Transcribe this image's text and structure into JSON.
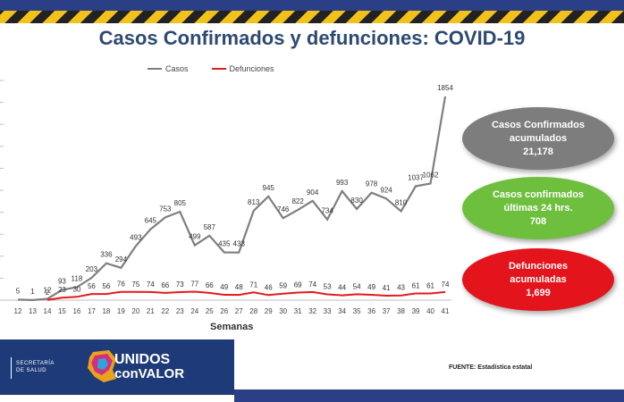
{
  "title": "Casos Confirmados y defunciones: COVID-19",
  "legend": {
    "series1": "Casos",
    "series2": "Defunciones",
    "color1": "#7f7f7f",
    "color2": "#e21b1b"
  },
  "xlabel": "Semanas",
  "cards": [
    {
      "line1": "Casos Confirmados",
      "line2": "acumulados",
      "line3": "21,178",
      "color": "#7d7d7d"
    },
    {
      "line1": "Casos confirmados",
      "line2": "últimas 24 hrs.",
      "line3": "708",
      "color": "#6fbf3e"
    },
    {
      "line1": "Defunciones",
      "line2": "acumuladas",
      "line3": "1,699",
      "color": "#e3141b"
    }
  ],
  "footer": {
    "secretaria": "SECRETARÍA",
    "de_salud": "DE SALUD",
    "logo_line1": "UNIDOS",
    "logo_line2": "conVALOR",
    "source": "FUENTE: Estadística estatal"
  },
  "chart_data": {
    "type": "line",
    "x": [
      12,
      13,
      14,
      15,
      16,
      17,
      18,
      19,
      20,
      21,
      22,
      23,
      24,
      25,
      26,
      27,
      28,
      29,
      30,
      31,
      32,
      33,
      34,
      35,
      36,
      37,
      38,
      39,
      40,
      41
    ],
    "series": [
      {
        "name": "Casos",
        "values": [
          5,
          1,
          12,
          93,
          118,
          203,
          336,
          294,
          493,
          645,
          753,
          805,
          499,
          587,
          435,
          433,
          813,
          945,
          746,
          822,
          904,
          734,
          993,
          830,
          978,
          924,
          810,
          1037,
          1062,
          1854
        ]
      },
      {
        "name": "Defunciones",
        "values": [
          null,
          null,
          2,
          23,
          30,
          56,
          56,
          76,
          75,
          74,
          66,
          73,
          77,
          66,
          49,
          48,
          71,
          46,
          59,
          69,
          74,
          53,
          44,
          54,
          49,
          41,
          43,
          61,
          61,
          74
        ]
      }
    ],
    "ylim": [
      0,
      2000
    ],
    "grid": false,
    "legend_position": "top-left"
  }
}
